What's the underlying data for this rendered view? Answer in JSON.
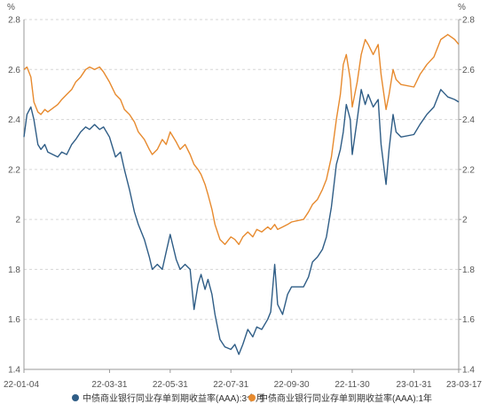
{
  "chart_data": {
    "type": "line",
    "y_unit_left": "%",
    "y_unit_right": "%",
    "ylim": [
      1.4,
      2.8
    ],
    "y_ticks": [
      "1.4",
      "1.6",
      "1.8",
      "2",
      "2.2",
      "2.4",
      "2.6",
      "2.8"
    ],
    "x_tick_labels": [
      "22-01-04",
      "22-03-31",
      "22-05-31",
      "22-07-31",
      "22-09-30",
      "22-11-30",
      "23-01-31",
      "23-03-17"
    ],
    "x_tick_dates": [
      "2022-01-04",
      "2022-03-31",
      "2022-05-31",
      "2022-07-31",
      "2022-09-30",
      "2022-11-30",
      "2023-01-31",
      "2023-03-17"
    ],
    "grid": "horizontal dashed",
    "legend_position": "bottom",
    "series": [
      {
        "name": "中债商业银行同业存单到期收益率(AAA):3个月",
        "color": "#2f5d86",
        "points": [
          [
            "2022-01-04",
            2.33
          ],
          [
            "2022-01-07",
            2.42
          ],
          [
            "2022-01-11",
            2.45
          ],
          [
            "2022-01-14",
            2.4
          ],
          [
            "2022-01-18",
            2.3
          ],
          [
            "2022-01-21",
            2.28
          ],
          [
            "2022-01-25",
            2.3
          ],
          [
            "2022-01-28",
            2.27
          ],
          [
            "2022-02-07",
            2.25
          ],
          [
            "2022-02-11",
            2.27
          ],
          [
            "2022-02-16",
            2.26
          ],
          [
            "2022-02-21",
            2.3
          ],
          [
            "2022-02-25",
            2.32
          ],
          [
            "2022-03-02",
            2.35
          ],
          [
            "2022-03-07",
            2.37
          ],
          [
            "2022-03-11",
            2.36
          ],
          [
            "2022-03-16",
            2.38
          ],
          [
            "2022-03-21",
            2.36
          ],
          [
            "2022-03-25",
            2.37
          ],
          [
            "2022-03-31",
            2.33
          ],
          [
            "2022-04-06",
            2.25
          ],
          [
            "2022-04-11",
            2.27
          ],
          [
            "2022-04-15",
            2.2
          ],
          [
            "2022-04-20",
            2.12
          ],
          [
            "2022-04-25",
            2.03
          ],
          [
            "2022-04-29",
            1.98
          ],
          [
            "2022-05-05",
            1.92
          ],
          [
            "2022-05-10",
            1.85
          ],
          [
            "2022-05-13",
            1.8
          ],
          [
            "2022-05-18",
            1.82
          ],
          [
            "2022-05-23",
            1.8
          ],
          [
            "2022-05-27",
            1.87
          ],
          [
            "2022-05-31",
            1.94
          ],
          [
            "2022-06-06",
            1.84
          ],
          [
            "2022-06-10",
            1.8
          ],
          [
            "2022-06-15",
            1.82
          ],
          [
            "2022-06-20",
            1.8
          ],
          [
            "2022-06-24",
            1.64
          ],
          [
            "2022-06-28",
            1.74
          ],
          [
            "2022-07-01",
            1.78
          ],
          [
            "2022-07-05",
            1.72
          ],
          [
            "2022-07-08",
            1.76
          ],
          [
            "2022-07-12",
            1.7
          ],
          [
            "2022-07-15",
            1.62
          ],
          [
            "2022-07-20",
            1.52
          ],
          [
            "2022-07-25",
            1.49
          ],
          [
            "2022-07-31",
            1.48
          ],
          [
            "2022-08-04",
            1.5
          ],
          [
            "2022-08-08",
            1.46
          ],
          [
            "2022-08-12",
            1.5
          ],
          [
            "2022-08-17",
            1.56
          ],
          [
            "2022-08-22",
            1.53
          ],
          [
            "2022-08-26",
            1.57
          ],
          [
            "2022-08-31",
            1.56
          ],
          [
            "2022-09-06",
            1.6
          ],
          [
            "2022-09-09",
            1.63
          ],
          [
            "2022-09-13",
            1.82
          ],
          [
            "2022-09-16",
            1.66
          ],
          [
            "2022-09-21",
            1.62
          ],
          [
            "2022-09-26",
            1.7
          ],
          [
            "2022-09-30",
            1.73
          ],
          [
            "2022-10-12",
            1.73
          ],
          [
            "2022-10-17",
            1.77
          ],
          [
            "2022-10-21",
            1.83
          ],
          [
            "2022-10-26",
            1.85
          ],
          [
            "2022-10-31",
            1.88
          ],
          [
            "2022-11-04",
            1.93
          ],
          [
            "2022-11-09",
            2.05
          ],
          [
            "2022-11-14",
            2.22
          ],
          [
            "2022-11-18",
            2.28
          ],
          [
            "2022-11-21",
            2.35
          ],
          [
            "2022-11-24",
            2.46
          ],
          [
            "2022-11-28",
            2.4
          ],
          [
            "2022-11-30",
            2.26
          ],
          [
            "2022-12-05",
            2.4
          ],
          [
            "2022-12-09",
            2.52
          ],
          [
            "2022-12-13",
            2.46
          ],
          [
            "2022-12-16",
            2.5
          ],
          [
            "2022-12-21",
            2.45
          ],
          [
            "2022-12-26",
            2.48
          ],
          [
            "2022-12-29",
            2.3
          ],
          [
            "2023-01-03",
            2.14
          ],
          [
            "2023-01-06",
            2.28
          ],
          [
            "2023-01-10",
            2.42
          ],
          [
            "2023-01-13",
            2.35
          ],
          [
            "2023-01-18",
            2.33
          ],
          [
            "2023-01-31",
            2.34
          ],
          [
            "2023-02-06",
            2.38
          ],
          [
            "2023-02-13",
            2.42
          ],
          [
            "2023-02-20",
            2.45
          ],
          [
            "2023-02-27",
            2.52
          ],
          [
            "2023-03-06",
            2.49
          ],
          [
            "2023-03-13",
            2.48
          ],
          [
            "2023-03-17",
            2.47
          ]
        ]
      },
      {
        "name": "中债商业银行同业存单到期收益率(AAA):1年",
        "color": "#e78a2e",
        "points": [
          [
            "2022-01-04",
            2.6
          ],
          [
            "2022-01-07",
            2.61
          ],
          [
            "2022-01-11",
            2.57
          ],
          [
            "2022-01-14",
            2.47
          ],
          [
            "2022-01-18",
            2.43
          ],
          [
            "2022-01-21",
            2.42
          ],
          [
            "2022-01-25",
            2.44
          ],
          [
            "2022-01-28",
            2.43
          ],
          [
            "2022-02-07",
            2.46
          ],
          [
            "2022-02-11",
            2.48
          ],
          [
            "2022-02-16",
            2.5
          ],
          [
            "2022-02-21",
            2.52
          ],
          [
            "2022-02-25",
            2.55
          ],
          [
            "2022-03-02",
            2.57
          ],
          [
            "2022-03-07",
            2.6
          ],
          [
            "2022-03-11",
            2.61
          ],
          [
            "2022-03-16",
            2.6
          ],
          [
            "2022-03-21",
            2.61
          ],
          [
            "2022-03-25",
            2.59
          ],
          [
            "2022-03-31",
            2.55
          ],
          [
            "2022-04-06",
            2.5
          ],
          [
            "2022-04-11",
            2.48
          ],
          [
            "2022-04-15",
            2.44
          ],
          [
            "2022-04-20",
            2.42
          ],
          [
            "2022-04-25",
            2.39
          ],
          [
            "2022-04-29",
            2.35
          ],
          [
            "2022-05-05",
            2.32
          ],
          [
            "2022-05-10",
            2.28
          ],
          [
            "2022-05-13",
            2.26
          ],
          [
            "2022-05-18",
            2.28
          ],
          [
            "2022-05-23",
            2.32
          ],
          [
            "2022-05-27",
            2.3
          ],
          [
            "2022-05-31",
            2.35
          ],
          [
            "2022-06-06",
            2.31
          ],
          [
            "2022-06-10",
            2.28
          ],
          [
            "2022-06-15",
            2.3
          ],
          [
            "2022-06-20",
            2.26
          ],
          [
            "2022-06-24",
            2.22
          ],
          [
            "2022-06-28",
            2.2
          ],
          [
            "2022-07-01",
            2.18
          ],
          [
            "2022-07-05",
            2.14
          ],
          [
            "2022-07-08",
            2.1
          ],
          [
            "2022-07-12",
            2.04
          ],
          [
            "2022-07-15",
            1.98
          ],
          [
            "2022-07-20",
            1.92
          ],
          [
            "2022-07-25",
            1.9
          ],
          [
            "2022-07-31",
            1.93
          ],
          [
            "2022-08-04",
            1.92
          ],
          [
            "2022-08-08",
            1.9
          ],
          [
            "2022-08-12",
            1.93
          ],
          [
            "2022-08-17",
            1.95
          ],
          [
            "2022-08-22",
            1.93
          ],
          [
            "2022-08-26",
            1.96
          ],
          [
            "2022-08-31",
            1.95
          ],
          [
            "2022-09-06",
            1.97
          ],
          [
            "2022-09-09",
            1.96
          ],
          [
            "2022-09-13",
            1.98
          ],
          [
            "2022-09-16",
            1.96
          ],
          [
            "2022-09-21",
            1.97
          ],
          [
            "2022-09-26",
            1.98
          ],
          [
            "2022-09-30",
            1.99
          ],
          [
            "2022-10-12",
            2.0
          ],
          [
            "2022-10-17",
            2.03
          ],
          [
            "2022-10-21",
            2.06
          ],
          [
            "2022-10-26",
            2.08
          ],
          [
            "2022-10-31",
            2.12
          ],
          [
            "2022-11-04",
            2.16
          ],
          [
            "2022-11-09",
            2.25
          ],
          [
            "2022-11-14",
            2.4
          ],
          [
            "2022-11-18",
            2.5
          ],
          [
            "2022-11-21",
            2.62
          ],
          [
            "2022-11-24",
            2.66
          ],
          [
            "2022-11-28",
            2.56
          ],
          [
            "2022-11-30",
            2.45
          ],
          [
            "2022-12-05",
            2.55
          ],
          [
            "2022-12-09",
            2.66
          ],
          [
            "2022-12-13",
            2.72
          ],
          [
            "2022-12-16",
            2.7
          ],
          [
            "2022-12-21",
            2.66
          ],
          [
            "2022-12-26",
            2.7
          ],
          [
            "2022-12-29",
            2.58
          ],
          [
            "2023-01-03",
            2.44
          ],
          [
            "2023-01-06",
            2.5
          ],
          [
            "2023-01-10",
            2.6
          ],
          [
            "2023-01-13",
            2.56
          ],
          [
            "2023-01-18",
            2.54
          ],
          [
            "2023-01-31",
            2.53
          ],
          [
            "2023-02-06",
            2.58
          ],
          [
            "2023-02-13",
            2.62
          ],
          [
            "2023-02-20",
            2.65
          ],
          [
            "2023-02-27",
            2.72
          ],
          [
            "2023-03-06",
            2.74
          ],
          [
            "2023-03-13",
            2.72
          ],
          [
            "2023-03-17",
            2.7
          ]
        ]
      }
    ]
  }
}
